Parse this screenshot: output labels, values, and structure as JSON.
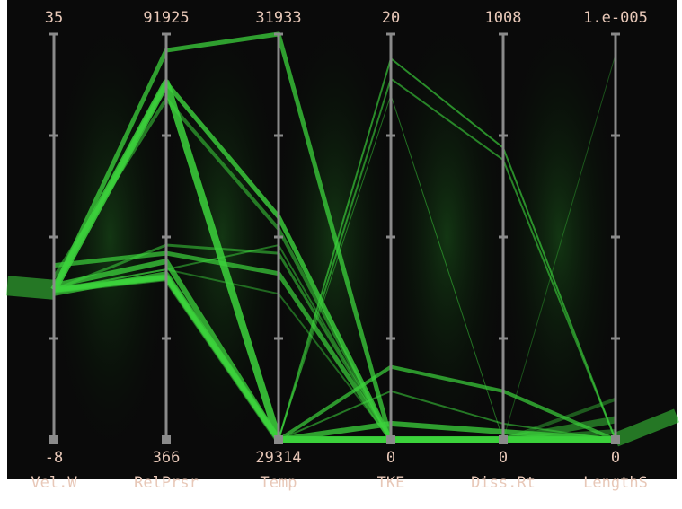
{
  "chart_data": {
    "type": "parallel-coordinates",
    "title": "",
    "background_color": "#0a0a0a",
    "line_color": "#3cd23c",
    "axis_color": "#8a8a8a",
    "axes": [
      {
        "name": "Vel.W",
        "max": "35",
        "min": "-8"
      },
      {
        "name": "RelPrsr",
        "max": "91925",
        "min": "366"
      },
      {
        "name": "Temp",
        "max": "31933",
        "min": "29314"
      },
      {
        "name": "TKE",
        "max": "20",
        "min": "0"
      },
      {
        "name": "Diss.Rt",
        "max": "1008",
        "min": "0"
      },
      {
        "name": "LengthS",
        "max": "1.e-005",
        "min": "0"
      }
    ],
    "series": [
      {
        "values": [
          0.37,
          0.88,
          0.0,
          0.0,
          0.0,
          0.0
        ],
        "weight": 8,
        "opacity": 0.85
      },
      {
        "values": [
          0.37,
          0.88,
          0.55,
          0.0,
          0.0,
          0.0
        ],
        "weight": 5,
        "opacity": 0.8
      },
      {
        "values": [
          0.4,
          0.84,
          0.52,
          0.0,
          0.0,
          0.0
        ],
        "weight": 4,
        "opacity": 0.55
      },
      {
        "values": [
          0.43,
          0.46,
          0.41,
          0.0,
          0.0,
          0.0
        ],
        "weight": 5,
        "opacity": 0.7
      },
      {
        "values": [
          0.38,
          0.44,
          0.0,
          0.0,
          0.0,
          0.0
        ],
        "weight": 6,
        "opacity": 0.75
      },
      {
        "values": [
          0.36,
          0.41,
          0.0,
          0.0,
          0.0,
          0.0
        ],
        "weight": 5,
        "opacity": 0.7
      },
      {
        "values": [
          0.37,
          0.96,
          1.0,
          0.0,
          0.0,
          0.0
        ],
        "weight": 5,
        "opacity": 0.75
      },
      {
        "values": [
          0.37,
          0.48,
          0.46,
          0.0,
          0.0,
          0.0
        ],
        "weight": 3,
        "opacity": 0.55
      },
      {
        "values": [
          0.37,
          0.4,
          0.0,
          0.94,
          0.72,
          0.0
        ],
        "weight": 2,
        "opacity": 0.65
      },
      {
        "values": [
          0.37,
          0.4,
          0.0,
          0.89,
          0.69,
          0.0
        ],
        "weight": 2,
        "opacity": 0.6
      },
      {
        "values": [
          0.37,
          0.4,
          0.0,
          0.85,
          0.0,
          0.0
        ],
        "weight": 1,
        "opacity": 0.5
      },
      {
        "values": [
          0.37,
          0.42,
          0.48,
          0.0,
          0.0,
          0.0
        ],
        "weight": 2,
        "opacity": 0.5
      },
      {
        "values": [
          0.37,
          0.42,
          0.36,
          0.0,
          0.0,
          0.0
        ],
        "weight": 2,
        "opacity": 0.45
      },
      {
        "values": [
          0.37,
          0.4,
          0.0,
          0.18,
          0.12,
          0.0
        ],
        "weight": 4,
        "opacity": 0.7
      },
      {
        "values": [
          0.37,
          0.4,
          0.0,
          0.12,
          0.04,
          0.0
        ],
        "weight": 2,
        "opacity": 0.55
      },
      {
        "values": [
          0.37,
          0.4,
          0.0,
          0.04,
          0.02,
          0.0
        ],
        "weight": 6,
        "opacity": 0.75
      },
      {
        "values": [
          0.37,
          0.4,
          0.0,
          0.0,
          0.0,
          0.95
        ],
        "weight": 1,
        "opacity": 0.35
      },
      {
        "values": [
          0.37,
          0.4,
          0.0,
          0.0,
          0.0,
          0.05
        ],
        "weight": 8,
        "opacity": 0.5
      },
      {
        "values": [
          0.37,
          0.4,
          0.0,
          0.0,
          0.0,
          0.02
        ],
        "weight": 6,
        "opacity": 0.45
      },
      {
        "values": [
          0.37,
          0.4,
          0.0,
          0.0,
          0.0,
          0.1
        ],
        "weight": 4,
        "opacity": 0.4
      }
    ]
  }
}
